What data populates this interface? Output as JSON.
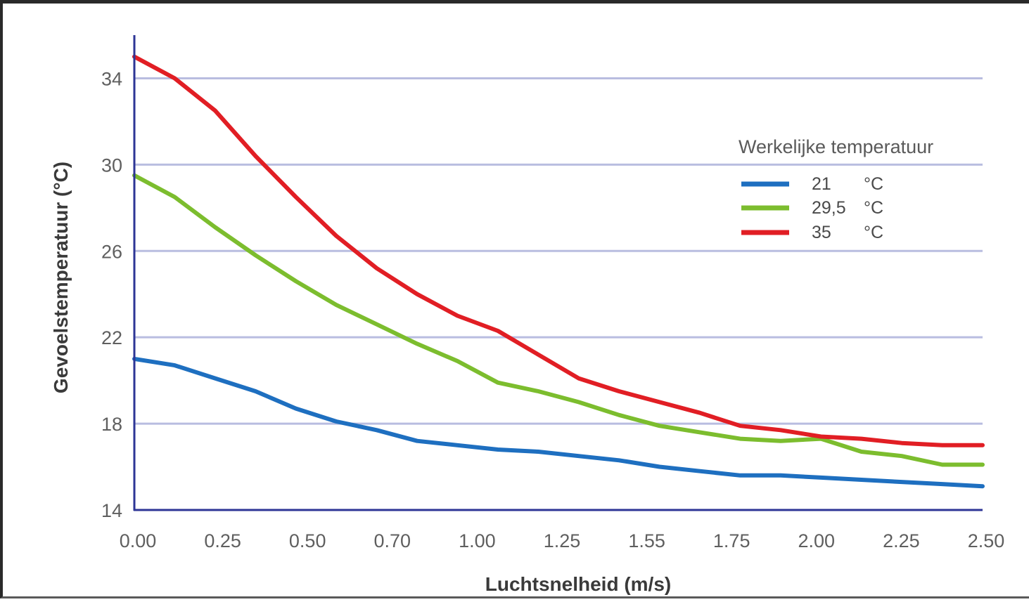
{
  "colors": {
    "background": "#ffffff",
    "grid": "#b9bde0",
    "axis": "#2d3596",
    "series_21": "#1e6fc0",
    "series_29_5": "#7cbd2e",
    "series_35": "#e11e24"
  },
  "chart_data": {
    "type": "line",
    "title": "",
    "xlabel": "Luchtsnelheid (m/s)",
    "ylabel": "Gevoelstemperatuur (°C)",
    "x_tick_labels": [
      "0.00",
      "0.25",
      "0.50",
      "0.70",
      "1.00",
      "1.25",
      "1.55",
      "1.75",
      "2.00",
      "2.25",
      "2.50"
    ],
    "y_ticks": [
      14,
      18,
      22,
      26,
      30,
      34
    ],
    "ylim": [
      14,
      36
    ],
    "grid": "horizontal",
    "legend": {
      "title": "Werkelijke temperatuur",
      "placement": "top-right",
      "entries": [
        {
          "value": "21",
          "unit": "°C"
        },
        {
          "value": "29,5",
          "unit": "°C"
        },
        {
          "value": "35",
          "unit": "°C"
        }
      ]
    },
    "series": [
      {
        "name": "21 °C",
        "color": "#1e6fc0",
        "values": [
          21.0,
          20.7,
          20.1,
          19.5,
          18.7,
          18.1,
          17.7,
          17.2,
          17.0,
          16.8,
          16.7,
          16.5,
          16.3,
          16.0,
          15.8,
          15.6,
          15.6,
          15.5,
          15.4,
          15.3,
          15.2,
          15.1
        ]
      },
      {
        "name": "29,5 °C",
        "color": "#7cbd2e",
        "values": [
          29.5,
          28.5,
          27.1,
          25.8,
          24.6,
          23.5,
          22.6,
          21.7,
          20.9,
          19.9,
          19.5,
          19.0,
          18.4,
          17.9,
          17.6,
          17.3,
          17.2,
          17.3,
          16.7,
          16.5,
          16.1,
          16.1
        ]
      },
      {
        "name": "35 °C",
        "color": "#e11e24",
        "values": [
          35.0,
          34.0,
          32.5,
          30.4,
          28.5,
          26.7,
          25.2,
          24.0,
          23.0,
          22.3,
          21.2,
          20.1,
          19.5,
          19.0,
          18.5,
          17.9,
          17.7,
          17.4,
          17.3,
          17.1,
          17.0,
          17.0
        ]
      }
    ]
  }
}
